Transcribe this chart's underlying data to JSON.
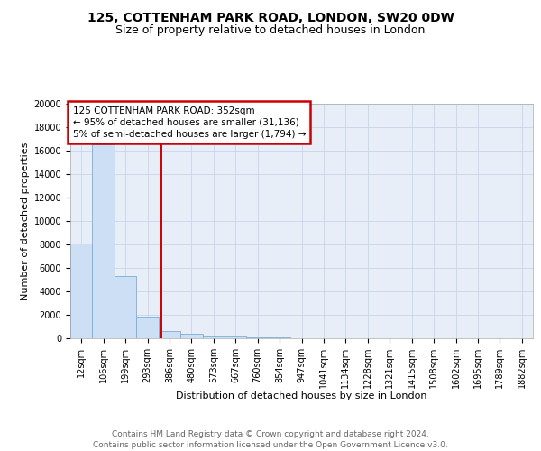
{
  "title1": "125, COTTENHAM PARK ROAD, LONDON, SW20 0DW",
  "title2": "Size of property relative to detached houses in London",
  "xlabel": "Distribution of detached houses by size in London",
  "ylabel": "Number of detached properties",
  "bin_labels": [
    "12sqm",
    "106sqm",
    "199sqm",
    "293sqm",
    "386sqm",
    "480sqm",
    "573sqm",
    "667sqm",
    "760sqm",
    "854sqm",
    "947sqm",
    "1041sqm",
    "1134sqm",
    "1228sqm",
    "1321sqm",
    "1415sqm",
    "1508sqm",
    "1602sqm",
    "1695sqm",
    "1789sqm",
    "1882sqm"
  ],
  "bar_heights": [
    8100,
    16500,
    5300,
    1850,
    650,
    350,
    180,
    130,
    80,
    50,
    0,
    0,
    0,
    0,
    0,
    0,
    0,
    0,
    0,
    0,
    0
  ],
  "bar_color": "#ccdff5",
  "bar_edge_color": "#7aafd4",
  "vline_color": "#cc0000",
  "annotation_box_text": "125 COTTENHAM PARK ROAD: 352sqm\n← 95% of detached houses are smaller (31,136)\n5% of semi-detached houses are larger (1,794) →",
  "annotation_box_color": "#cc0000",
  "ylim": [
    0,
    20000
  ],
  "yticks": [
    0,
    2000,
    4000,
    6000,
    8000,
    10000,
    12000,
    14000,
    16000,
    18000,
    20000
  ],
  "grid_color": "#c8d4e8",
  "bg_color": "#e8eef8",
  "footer": "Contains HM Land Registry data © Crown copyright and database right 2024.\nContains public sector information licensed under the Open Government Licence v3.0.",
  "title1_fontsize": 10,
  "title2_fontsize": 9,
  "axis_label_fontsize": 8,
  "tick_fontsize": 7,
  "footer_fontsize": 6.5,
  "annotation_fontsize": 7.5
}
